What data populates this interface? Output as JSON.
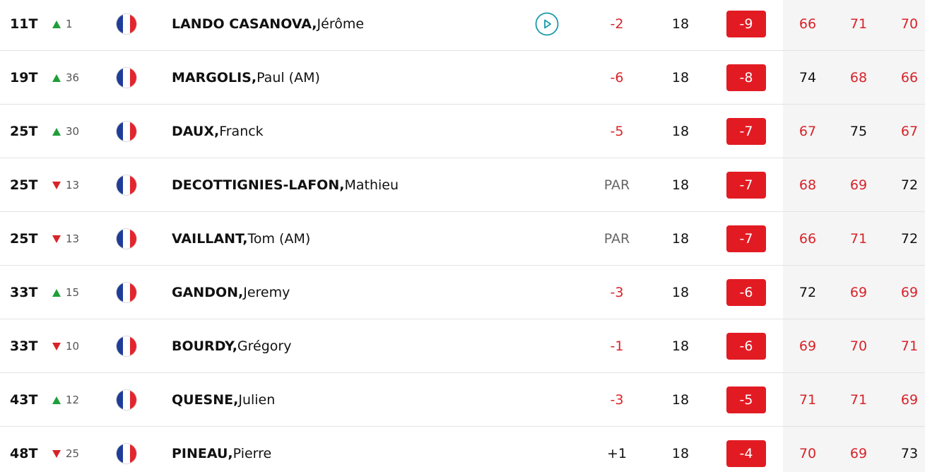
{
  "colors": {
    "under_par": "#d8232a",
    "total_badge": "#e21b23",
    "move_up": "#1f9e3a",
    "move_down": "#d8232a",
    "video_icon": "#1a9aa8"
  },
  "rows": [
    {
      "pos": "11T",
      "move_dir": "up",
      "move": "1",
      "last": "LANDO CASANOVA,",
      "first": " Jérôme",
      "video": true,
      "today": "-2",
      "today_tone": "red",
      "thru": "18",
      "total": "-9",
      "r1": "66",
      "r1_tone": "red",
      "r2": "71",
      "r2_tone": "red",
      "r3": "70",
      "r3_tone": "red"
    },
    {
      "pos": "19T",
      "move_dir": "up",
      "move": "36",
      "last": "MARGOLIS,",
      "first": " Paul (AM)",
      "video": false,
      "today": "-6",
      "today_tone": "red",
      "thru": "18",
      "total": "-8",
      "r1": "74",
      "r1_tone": "dark",
      "r2": "68",
      "r2_tone": "red",
      "r3": "66",
      "r3_tone": "red"
    },
    {
      "pos": "25T",
      "move_dir": "up",
      "move": "30",
      "last": "DAUX,",
      "first": " Franck",
      "video": false,
      "today": "-5",
      "today_tone": "red",
      "thru": "18",
      "total": "-7",
      "r1": "67",
      "r1_tone": "red",
      "r2": "75",
      "r2_tone": "dark",
      "r3": "67",
      "r3_tone": "red"
    },
    {
      "pos": "25T",
      "move_dir": "down",
      "move": "13",
      "last": "DECOTTIGNIES-LAFON,",
      "first": " Mathieu",
      "video": false,
      "today": "PAR",
      "today_tone": "gray",
      "thru": "18",
      "total": "-7",
      "r1": "68",
      "r1_tone": "red",
      "r2": "69",
      "r2_tone": "red",
      "r3": "72",
      "r3_tone": "dark"
    },
    {
      "pos": "25T",
      "move_dir": "down",
      "move": "13",
      "last": "VAILLANT,",
      "first": " Tom (AM)",
      "video": false,
      "today": "PAR",
      "today_tone": "gray",
      "thru": "18",
      "total": "-7",
      "r1": "66",
      "r1_tone": "red",
      "r2": "71",
      "r2_tone": "red",
      "r3": "72",
      "r3_tone": "dark"
    },
    {
      "pos": "33T",
      "move_dir": "up",
      "move": "15",
      "last": "GANDON,",
      "first": " Jeremy",
      "video": false,
      "today": "-3",
      "today_tone": "red",
      "thru": "18",
      "total": "-6",
      "r1": "72",
      "r1_tone": "dark",
      "r2": "69",
      "r2_tone": "red",
      "r3": "69",
      "r3_tone": "red"
    },
    {
      "pos": "33T",
      "move_dir": "down",
      "move": "10",
      "last": "BOURDY,",
      "first": " Grégory",
      "video": false,
      "today": "-1",
      "today_tone": "red",
      "thru": "18",
      "total": "-6",
      "r1": "69",
      "r1_tone": "red",
      "r2": "70",
      "r2_tone": "red",
      "r3": "71",
      "r3_tone": "red"
    },
    {
      "pos": "43T",
      "move_dir": "up",
      "move": "12",
      "last": "QUESNE,",
      "first": " Julien",
      "video": false,
      "today": "-3",
      "today_tone": "red",
      "thru": "18",
      "total": "-5",
      "r1": "71",
      "r1_tone": "red",
      "r2": "71",
      "r2_tone": "red",
      "r3": "69",
      "r3_tone": "red"
    },
    {
      "pos": "48T",
      "move_dir": "down",
      "move": "25",
      "last": "PINEAU,",
      "first": " Pierre",
      "video": false,
      "today": "+1",
      "today_tone": "dark",
      "thru": "18",
      "total": "-4",
      "r1": "70",
      "r1_tone": "red",
      "r2": "69",
      "r2_tone": "red",
      "r3": "73",
      "r3_tone": "dark"
    }
  ]
}
